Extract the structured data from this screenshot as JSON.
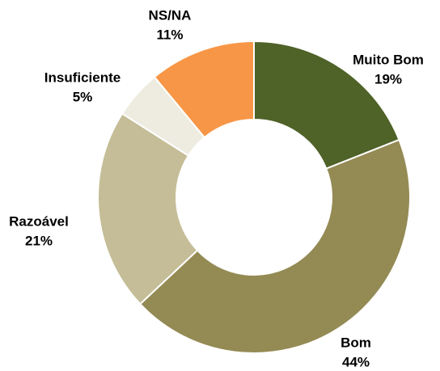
{
  "chart_data": {
    "type": "donut",
    "categories": [
      "Muito Bom",
      "Bom",
      "Razoável",
      "Insuficiente",
      "NS/NA"
    ],
    "values": [
      19,
      44,
      21,
      5,
      11
    ],
    "value_labels": [
      "19%",
      "44%",
      "21%",
      "5%",
      "11%"
    ],
    "colors": [
      "#4f6228",
      "#948a54",
      "#c4bd97",
      "#eeece1",
      "#f79646"
    ]
  }
}
